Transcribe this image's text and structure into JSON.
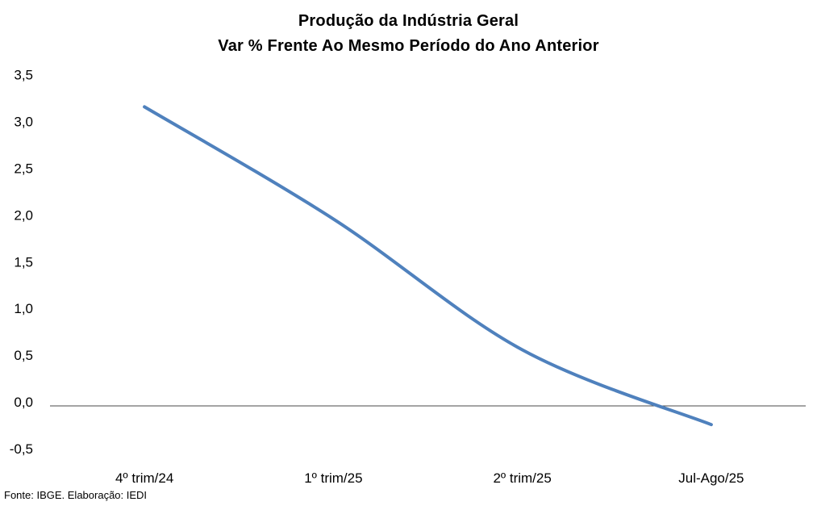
{
  "chart_data": {
    "type": "line",
    "title": "Produção da Indústria Geral",
    "subtitle": "Var % Frente Ao Mesmo Período do Ano Anterior",
    "categories": [
      "4º trim/24",
      "1º trim/25",
      "2º trim/25",
      "Jul-Ago/25"
    ],
    "values": [
      3.2,
      2.0,
      0.6,
      -0.2
    ],
    "ylim": [
      -0.5,
      3.5
    ],
    "ytick_step": 0.5,
    "ytick_labels": [
      "3,5",
      "3,0",
      "2,5",
      "2,0",
      "1,5",
      "1,0",
      "0,5",
      "0,0",
      "-0,5"
    ],
    "decimal_separator": ",",
    "grid": false,
    "legend": false,
    "smooth_line": true,
    "line_color": "#4F81BD",
    "zero_line_color": "#4a4a4a",
    "text_color": "#000000"
  },
  "footer": {
    "source": "Fonte: IBGE. Elaboração: IEDI"
  }
}
